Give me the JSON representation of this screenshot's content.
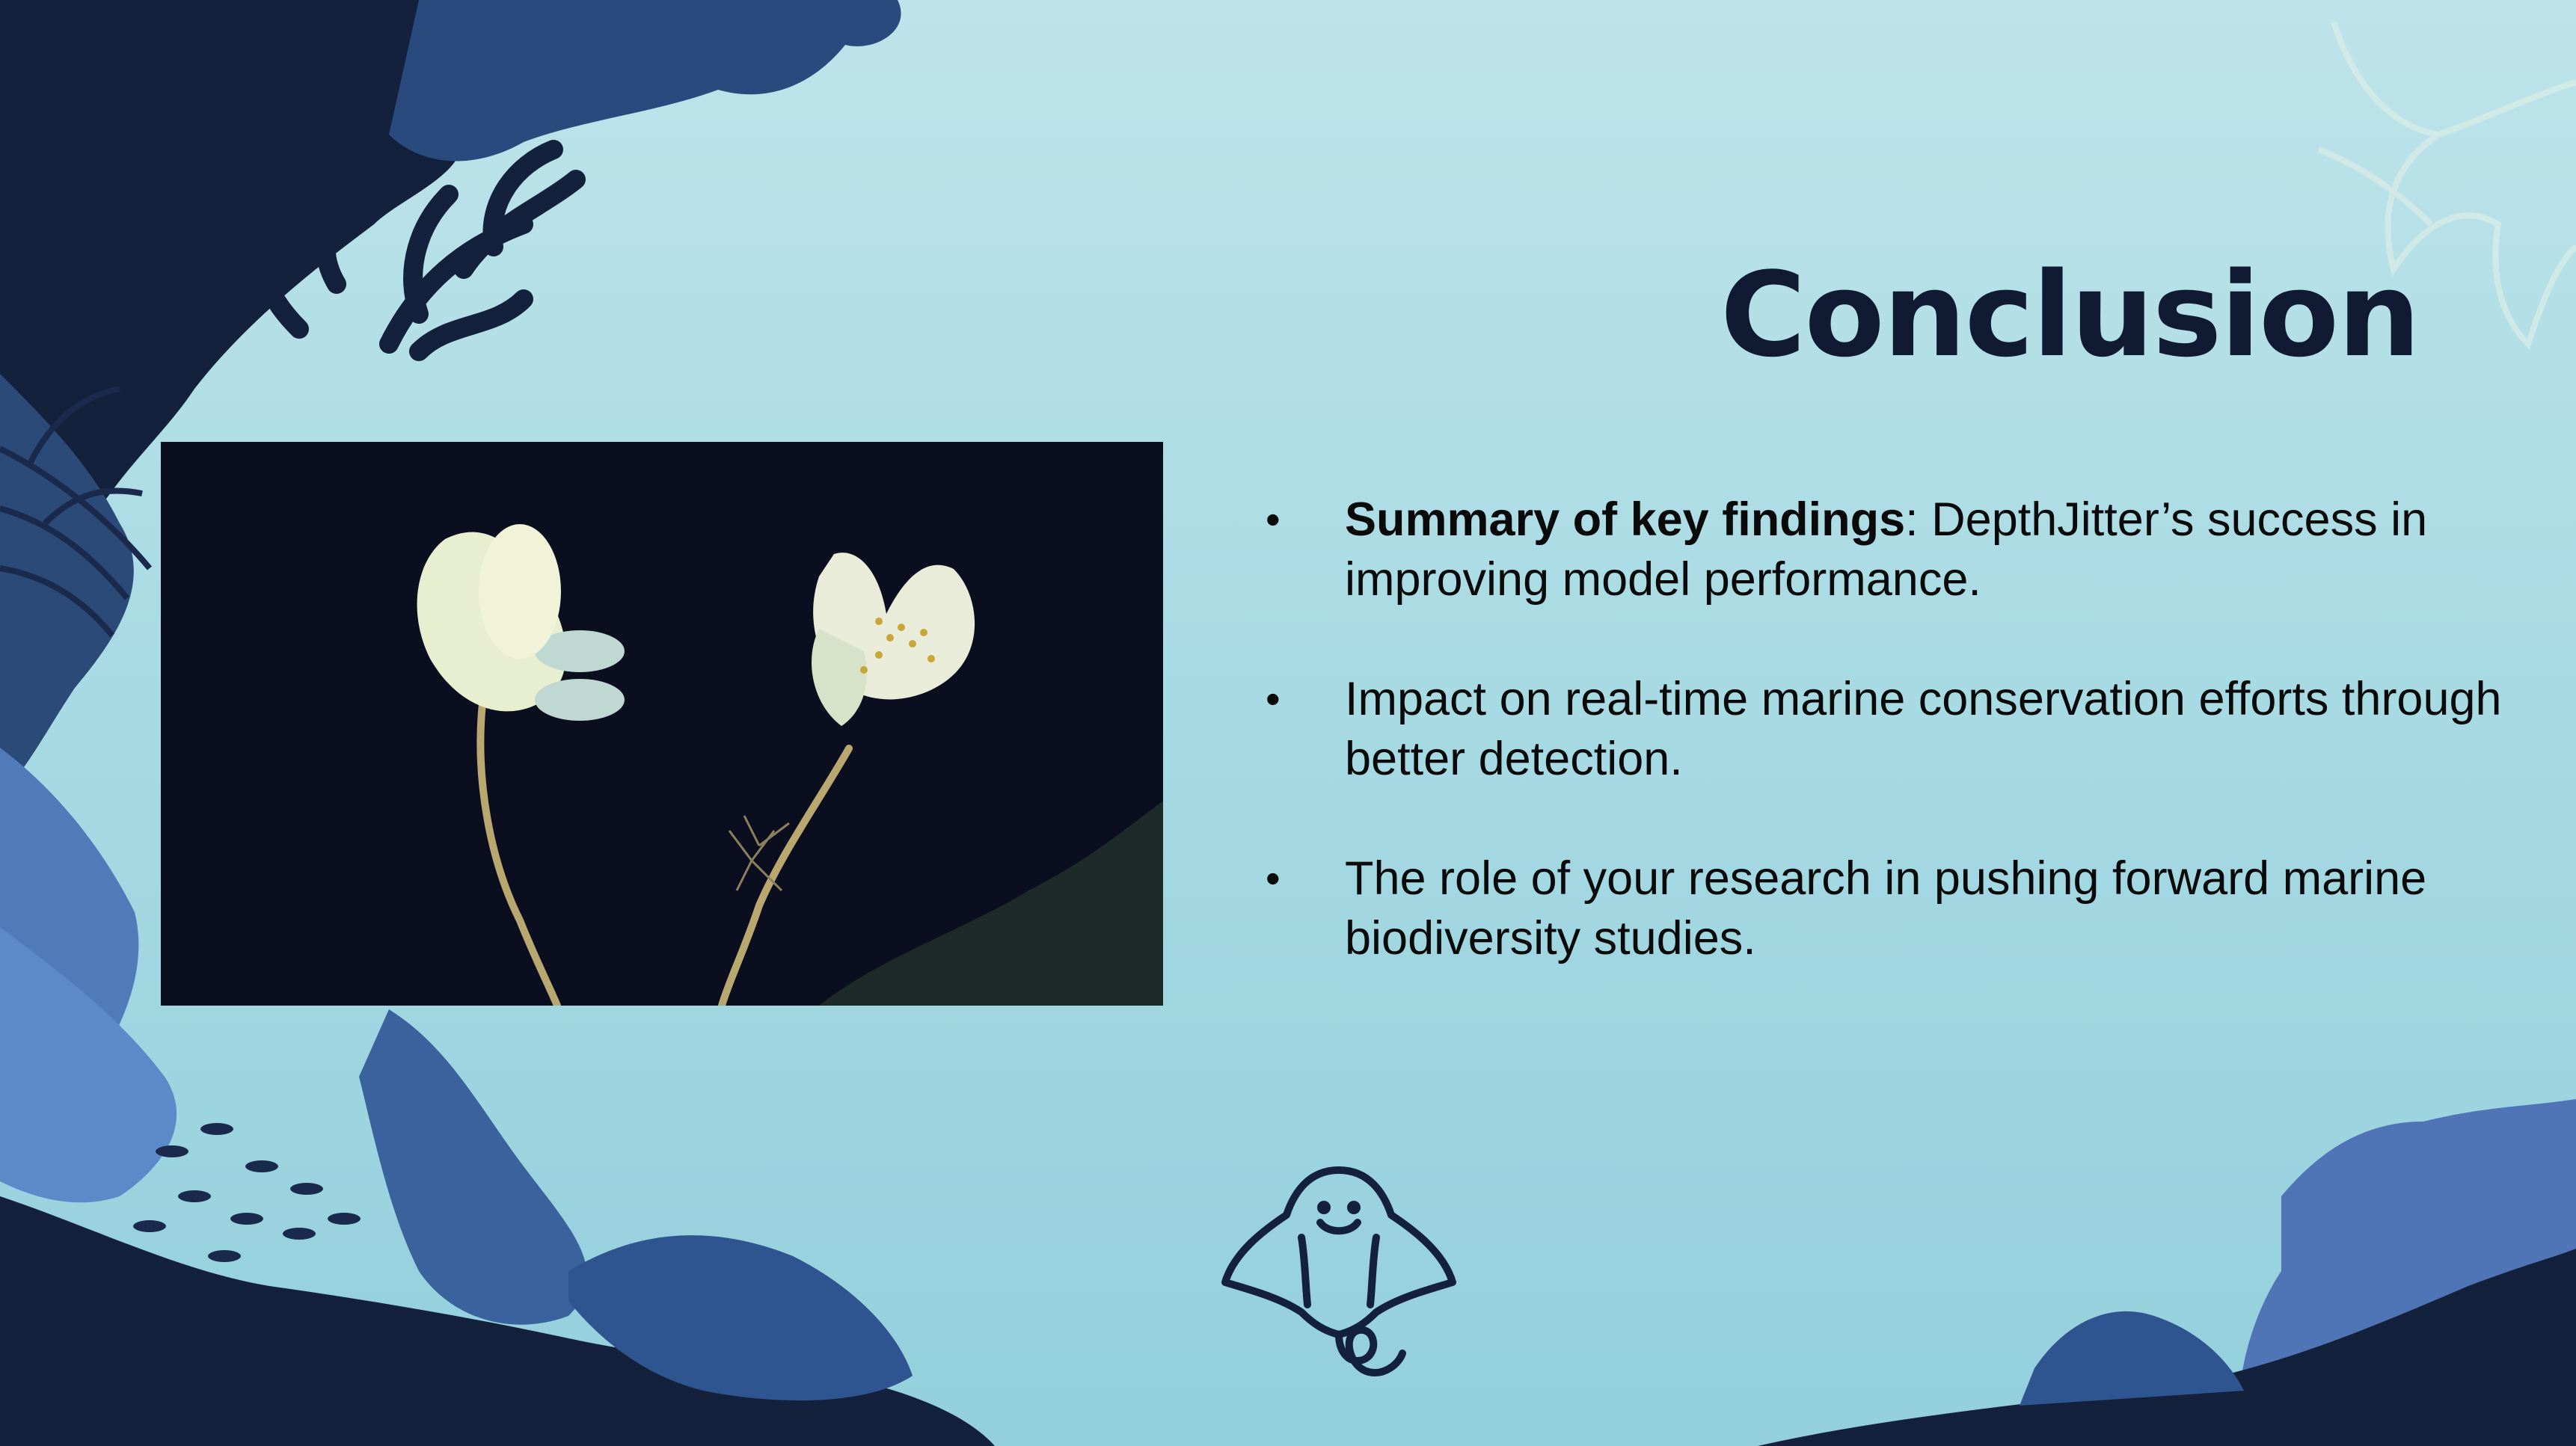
{
  "slide": {
    "title": "Conclusion",
    "bullets": [
      {
        "bold": "Summary of key findings",
        "text": ": DepthJitter’s success in improving model performance."
      },
      {
        "bold": "",
        "text": "Impact on real-time marine conservation efforts through better detection."
      },
      {
        "bold": "",
        "text": "The role of your research in pushing forward marine biodiversity studies."
      }
    ],
    "bullet_glyph": "•"
  },
  "icons": {
    "manta": "manta-ray-icon",
    "starfish": "starfish-outline",
    "coral": "coral-silhouettes",
    "fish": "fish-school"
  },
  "colors": {
    "background_top": "#bfe3ea",
    "background_bottom": "#93cfdc",
    "title": "#101a33",
    "dark_navy": "#14213d",
    "mid_blue": "#2e4f82",
    "light_blue": "#5b86c4",
    "text": "#0a0a0a"
  }
}
